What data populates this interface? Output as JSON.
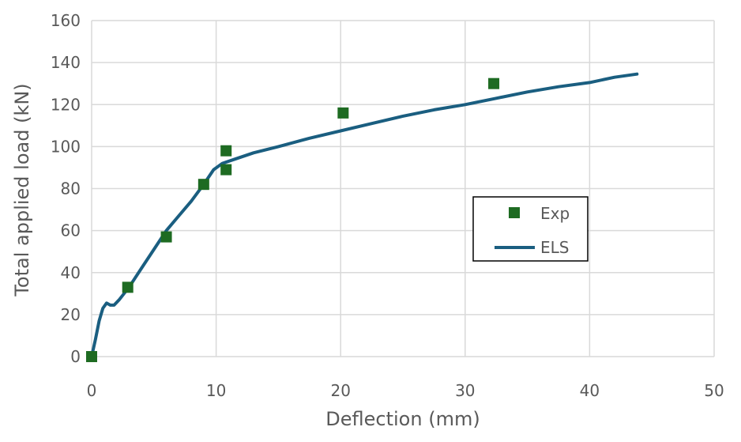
{
  "chart_data": {
    "type": "scatter",
    "xlabel": "Deflection (mm)",
    "ylabel": "Total applied load (kN)",
    "xlim": [
      0,
      50
    ],
    "ylim": [
      0,
      160
    ],
    "x_ticks": [
      0,
      10,
      20,
      30,
      40,
      50
    ],
    "y_ticks": [
      0,
      20,
      40,
      60,
      80,
      100,
      120,
      140,
      160
    ],
    "grid": true,
    "legend_position": "right",
    "series": [
      {
        "name": "Exp",
        "kind": "scatter",
        "marker": "square",
        "color": "#1e6b22",
        "points": [
          {
            "x": 0,
            "y": 0
          },
          {
            "x": 2.9,
            "y": 33
          },
          {
            "x": 6.0,
            "y": 57
          },
          {
            "x": 9.0,
            "y": 82
          },
          {
            "x": 10.8,
            "y": 98
          },
          {
            "x": 10.8,
            "y": 89
          },
          {
            "x": 20.2,
            "y": 116
          },
          {
            "x": 32.3,
            "y": 130
          }
        ]
      },
      {
        "name": "ELS",
        "kind": "line",
        "color": "#1a5e80",
        "points": [
          {
            "x": 0,
            "y": 0
          },
          {
            "x": 0.3,
            "y": 8
          },
          {
            "x": 0.6,
            "y": 17
          },
          {
            "x": 0.9,
            "y": 23
          },
          {
            "x": 1.2,
            "y": 25.5
          },
          {
            "x": 1.5,
            "y": 24.5
          },
          {
            "x": 1.8,
            "y": 24.5
          },
          {
            "x": 2.2,
            "y": 27
          },
          {
            "x": 3.0,
            "y": 33
          },
          {
            "x": 4.0,
            "y": 42
          },
          {
            "x": 5.0,
            "y": 51
          },
          {
            "x": 6.0,
            "y": 60
          },
          {
            "x": 7.0,
            "y": 67
          },
          {
            "x": 8.0,
            "y": 74
          },
          {
            "x": 9.0,
            "y": 82
          },
          {
            "x": 9.8,
            "y": 89
          },
          {
            "x": 10.5,
            "y": 92
          },
          {
            "x": 11.5,
            "y": 94
          },
          {
            "x": 13,
            "y": 97
          },
          {
            "x": 15,
            "y": 100
          },
          {
            "x": 17.5,
            "y": 104
          },
          {
            "x": 20,
            "y": 107.5
          },
          {
            "x": 22.5,
            "y": 111
          },
          {
            "x": 25,
            "y": 114.5
          },
          {
            "x": 27.5,
            "y": 117.5
          },
          {
            "x": 30,
            "y": 120
          },
          {
            "x": 32.5,
            "y": 123
          },
          {
            "x": 35,
            "y": 126
          },
          {
            "x": 37.5,
            "y": 128.5
          },
          {
            "x": 40,
            "y": 130.5
          },
          {
            "x": 42,
            "y": 133
          },
          {
            "x": 43.8,
            "y": 134.5
          }
        ]
      }
    ]
  }
}
